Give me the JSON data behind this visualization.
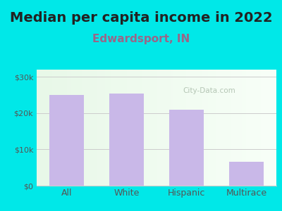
{
  "title": "Median per capita income in 2022",
  "subtitle": "Edwardsport, IN",
  "categories": [
    "All",
    "White",
    "Hispanic",
    "Multirace"
  ],
  "values": [
    25000,
    25500,
    21000,
    6500
  ],
  "bar_color": "#c9b8e8",
  "title_fontsize": 14,
  "subtitle_fontsize": 11,
  "subtitle_color": "#996688",
  "title_color": "#222222",
  "background_outer": "#00e8e8",
  "ylim": [
    0,
    32000
  ],
  "yticks": [
    0,
    10000,
    20000,
    30000
  ],
  "ytick_labels": [
    "$0",
    "$10k",
    "$20k",
    "$30k"
  ],
  "watermark": "City-Data.com",
  "grid_color": "#cccccc",
  "tick_color": "#555555"
}
